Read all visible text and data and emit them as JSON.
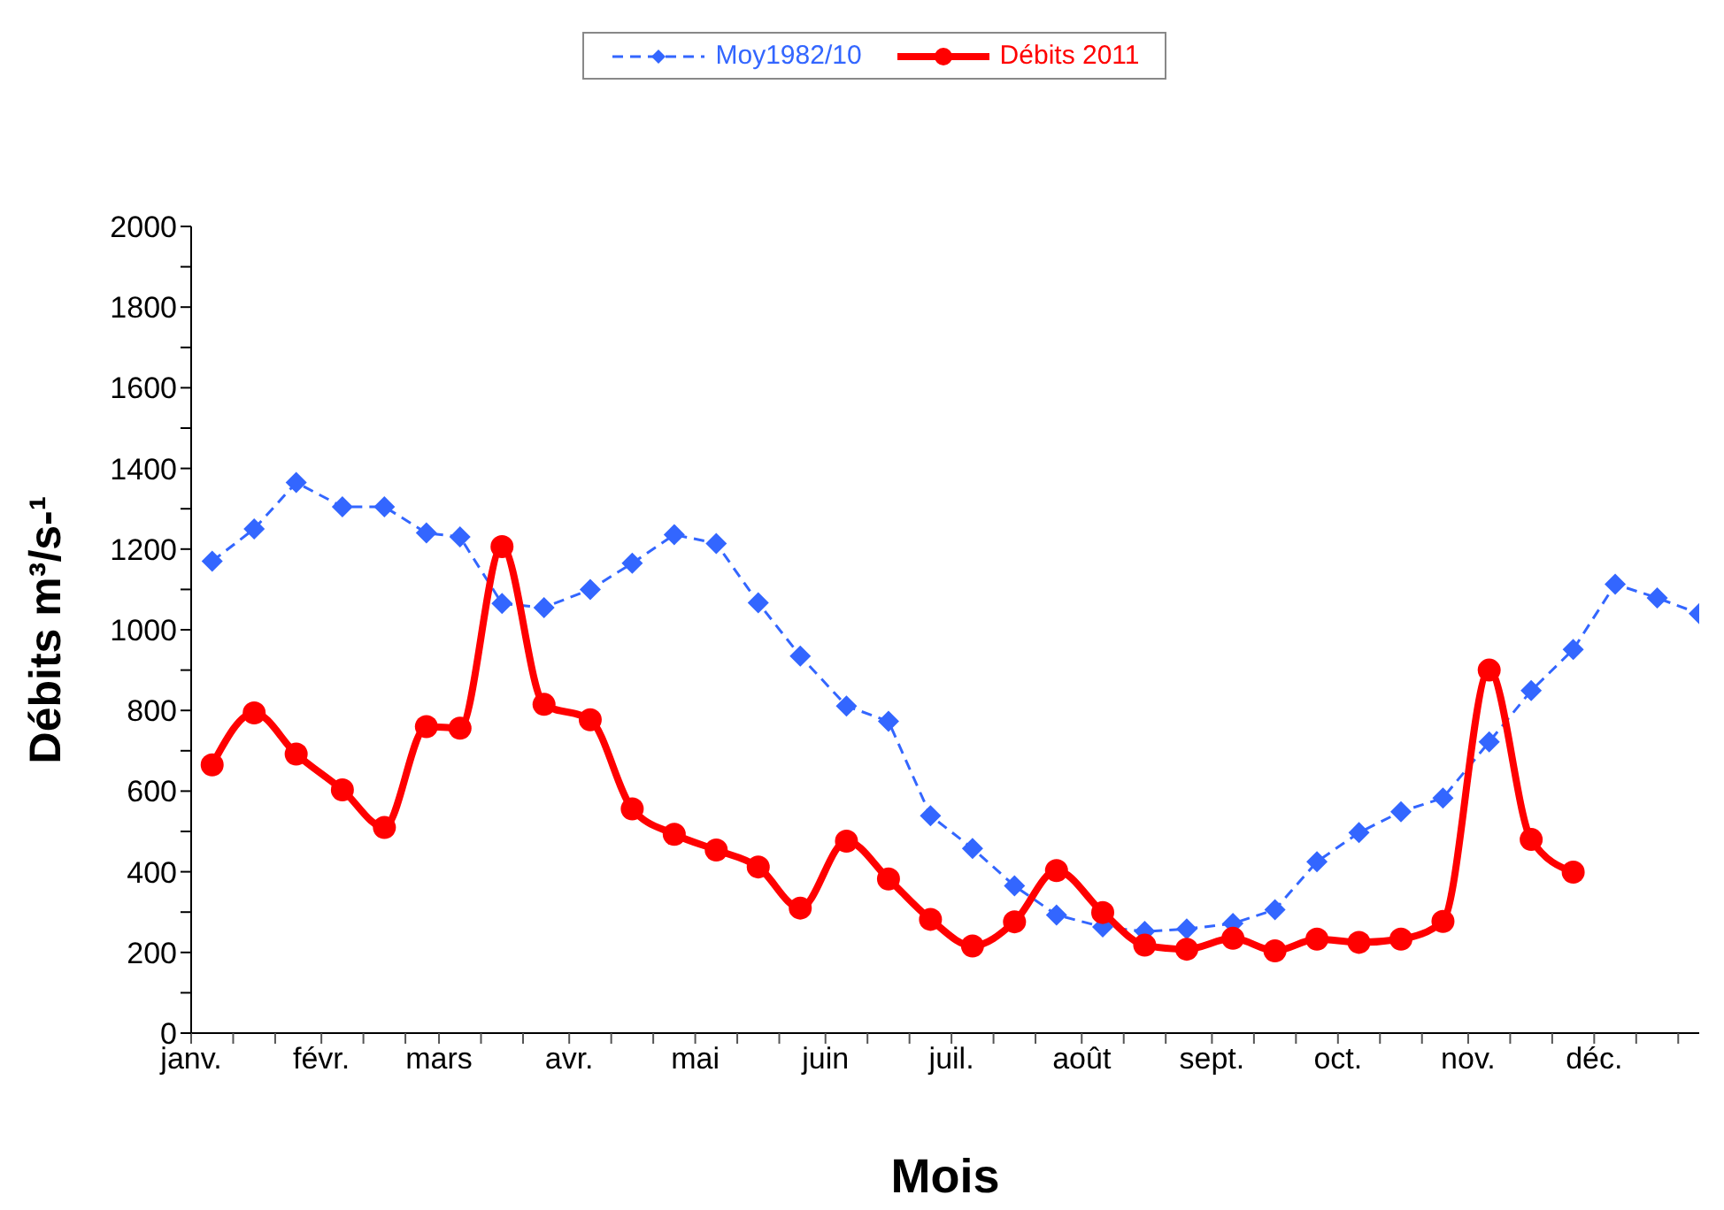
{
  "chart_data": {
    "type": "line",
    "xlabel": "Mois",
    "ylabel": "Débits m³/s-¹",
    "legend": "top",
    "x": [
      "2011-01-06",
      "2011-01-16",
      "2011-01-26",
      "2011-02-06",
      "2011-02-16",
      "2011-02-26",
      "2011-03-06",
      "2011-03-16",
      "2011-03-26",
      "2011-04-06",
      "2011-04-16",
      "2011-04-26",
      "2011-05-06",
      "2011-05-16",
      "2011-05-26",
      "2011-06-06",
      "2011-06-16",
      "2011-06-26",
      "2011-07-06",
      "2011-07-16",
      "2011-07-26",
      "2011-08-06",
      "2011-08-16",
      "2011-08-26",
      "2011-09-06",
      "2011-09-16",
      "2011-09-26",
      "2011-10-06",
      "2011-10-16",
      "2011-10-26",
      "2011-11-06",
      "2011-11-16",
      "2011-11-26",
      "2011-12-06",
      "2011-12-16",
      "2011-12-26"
    ],
    "xlim": [
      "2011-01-01",
      "2011-12-26"
    ],
    "xticks": [
      {
        "value": "2011-01-01",
        "label": "janv."
      },
      {
        "value": "2011-01-11",
        "label": null
      },
      {
        "value": "2011-01-21",
        "label": null
      },
      {
        "value": "2011-02-01",
        "label": "févr."
      },
      {
        "value": "2011-02-11",
        "label": null
      },
      {
        "value": "2011-02-21",
        "label": null
      },
      {
        "value": "2011-03-01",
        "label": "mars"
      },
      {
        "value": "2011-03-11",
        "label": null
      },
      {
        "value": "2011-03-21",
        "label": null
      },
      {
        "value": "2011-04-01",
        "label": "avr."
      },
      {
        "value": "2011-04-11",
        "label": null
      },
      {
        "value": "2011-04-21",
        "label": null
      },
      {
        "value": "2011-05-01",
        "label": "mai"
      },
      {
        "value": "2011-05-11",
        "label": null
      },
      {
        "value": "2011-05-21",
        "label": null
      },
      {
        "value": "2011-06-01",
        "label": "juin"
      },
      {
        "value": "2011-06-11",
        "label": null
      },
      {
        "value": "2011-06-21",
        "label": null
      },
      {
        "value": "2011-07-01",
        "label": "juil."
      },
      {
        "value": "2011-07-11",
        "label": null
      },
      {
        "value": "2011-07-21",
        "label": null
      },
      {
        "value": "2011-08-01",
        "label": "août"
      },
      {
        "value": "2011-08-11",
        "label": null
      },
      {
        "value": "2011-08-21",
        "label": null
      },
      {
        "value": "2011-09-01",
        "label": "sept."
      },
      {
        "value": "2011-09-11",
        "label": null
      },
      {
        "value": "2011-09-21",
        "label": null
      },
      {
        "value": "2011-10-01",
        "label": "oct."
      },
      {
        "value": "2011-10-11",
        "label": null
      },
      {
        "value": "2011-10-21",
        "label": null
      },
      {
        "value": "2011-11-01",
        "label": "nov."
      },
      {
        "value": "2011-11-11",
        "label": null
      },
      {
        "value": "2011-11-21",
        "label": null
      },
      {
        "value": "2011-12-01",
        "label": "déc."
      },
      {
        "value": "2011-12-11",
        "label": null
      },
      {
        "value": "2011-12-21",
        "label": null
      }
    ],
    "ylim": [
      0,
      2000
    ],
    "yticks": [
      0,
      {
        "value": 100,
        "label": null
      },
      200,
      {
        "value": 300,
        "label": null
      },
      400,
      {
        "value": 500,
        "label": null
      },
      600,
      {
        "value": 700,
        "label": null
      },
      800,
      {
        "value": 900,
        "label": null
      },
      1000,
      {
        "value": 1100,
        "label": null
      },
      1200,
      {
        "value": 1300,
        "label": null
      },
      1400,
      {
        "value": 1500,
        "label": null
      },
      1600,
      {
        "value": 1700,
        "label": null
      },
      1800,
      {
        "value": 1900,
        "label": null
      },
      2000
    ],
    "series": [
      {
        "name": "Moy1982/10",
        "color": "#3366ff",
        "marker": "diamond",
        "line_style": "dashed",
        "values": [
          1170,
          1250,
          1365,
          1305,
          1305,
          1240,
          1230,
          1065,
          1055,
          1100,
          1165,
          1236,
          1214,
          1067,
          935,
          811,
          773,
          539,
          458,
          365,
          293,
          263,
          252,
          258,
          272,
          306,
          425,
          497,
          549,
          583,
          722,
          849,
          951,
          1113,
          1079,
          1040
        ]
      },
      {
        "name": "Débits 2011",
        "color": "#ff0000",
        "marker": "circle",
        "line_style": "solid",
        "x": [
          "2011-01-06",
          "2011-01-16",
          "2011-01-26",
          "2011-02-06",
          "2011-02-16",
          "2011-02-26",
          "2011-03-06",
          "2011-03-16",
          "2011-03-26",
          "2011-04-06",
          "2011-04-16",
          "2011-04-26",
          "2011-05-06",
          "2011-05-16",
          "2011-05-26",
          "2011-06-06",
          "2011-06-16",
          "2011-06-26",
          "2011-07-06",
          "2011-07-16",
          "2011-07-26",
          "2011-08-06",
          "2011-08-16",
          "2011-08-26",
          "2011-09-06",
          "2011-09-16",
          "2011-09-26",
          "2011-10-06",
          "2011-10-16",
          "2011-10-26",
          "2011-11-06",
          "2011-11-16",
          "2011-11-26"
        ],
        "values": [
          665,
          794,
          692,
          603,
          510,
          760,
          756,
          1206,
          815,
          777,
          556,
          493,
          454,
          412,
          310,
          476,
          382,
          282,
          216,
          276,
          403,
          299,
          218,
          208,
          235,
          204,
          233,
          225,
          233,
          277,
          900,
          480,
          399
        ]
      }
    ]
  }
}
